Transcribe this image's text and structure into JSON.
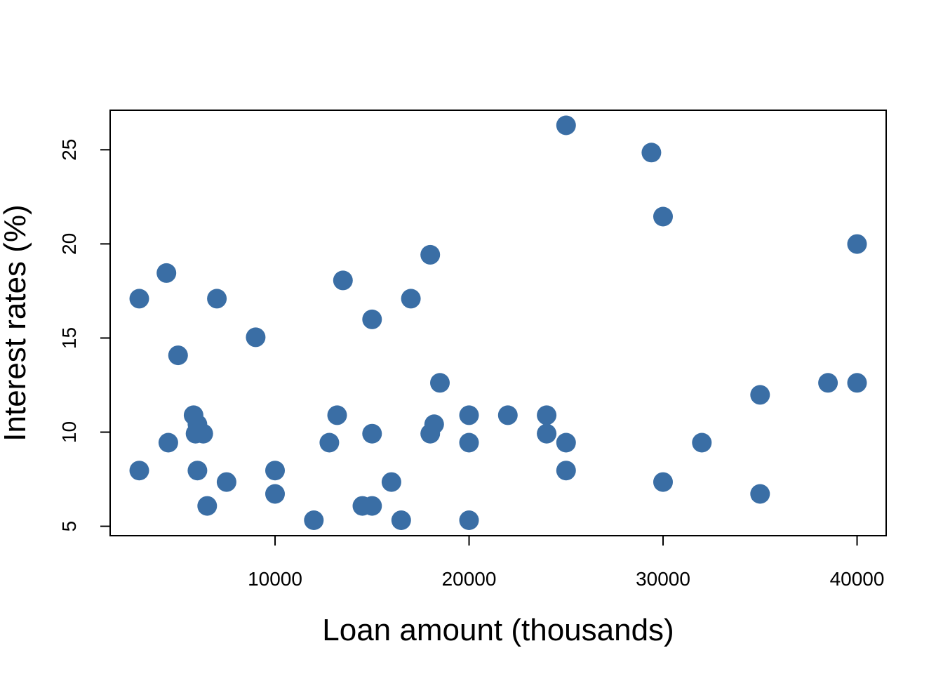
{
  "chart_data": {
    "type": "scatter",
    "title": "",
    "xlabel": "Loan amount (thousands)",
    "ylabel": "Interest rates (%)",
    "xlim": [
      1500,
      41500
    ],
    "ylim": [
      4.5,
      27.1
    ],
    "xticks": [
      10000,
      20000,
      30000,
      40000
    ],
    "yticks": [
      5,
      10,
      15,
      20,
      25
    ],
    "grid": false,
    "legend": "none",
    "point_color": "#3a6ea5",
    "points": [
      {
        "x": 3000,
        "y": 17.09
      },
      {
        "x": 3000,
        "y": 7.96
      },
      {
        "x": 4400,
        "y": 18.45
      },
      {
        "x": 4500,
        "y": 9.44
      },
      {
        "x": 5000,
        "y": 14.08
      },
      {
        "x": 5800,
        "y": 10.9
      },
      {
        "x": 6000,
        "y": 10.42
      },
      {
        "x": 5900,
        "y": 9.92
      },
      {
        "x": 6300,
        "y": 9.92
      },
      {
        "x": 6000,
        "y": 7.96
      },
      {
        "x": 6500,
        "y": 6.08
      },
      {
        "x": 7000,
        "y": 17.09
      },
      {
        "x": 7500,
        "y": 7.35
      },
      {
        "x": 9000,
        "y": 15.04
      },
      {
        "x": 10000,
        "y": 7.96
      },
      {
        "x": 10000,
        "y": 6.72
      },
      {
        "x": 12000,
        "y": 5.32
      },
      {
        "x": 12800,
        "y": 9.44
      },
      {
        "x": 13200,
        "y": 10.9
      },
      {
        "x": 13500,
        "y": 18.06
      },
      {
        "x": 14500,
        "y": 6.08
      },
      {
        "x": 15000,
        "y": 6.08
      },
      {
        "x": 15000,
        "y": 9.92
      },
      {
        "x": 15000,
        "y": 15.99
      },
      {
        "x": 16000,
        "y": 7.35
      },
      {
        "x": 16500,
        "y": 5.32
      },
      {
        "x": 17000,
        "y": 17.09
      },
      {
        "x": 18000,
        "y": 19.42
      },
      {
        "x": 18000,
        "y": 9.92
      },
      {
        "x": 18200,
        "y": 10.42
      },
      {
        "x": 18500,
        "y": 12.62
      },
      {
        "x": 20000,
        "y": 10.9
      },
      {
        "x": 20000,
        "y": 9.44
      },
      {
        "x": 20000,
        "y": 5.32
      },
      {
        "x": 22000,
        "y": 10.9
      },
      {
        "x": 24000,
        "y": 10.9
      },
      {
        "x": 24000,
        "y": 9.92
      },
      {
        "x": 25000,
        "y": 26.3
      },
      {
        "x": 25000,
        "y": 9.44
      },
      {
        "x": 25000,
        "y": 7.96
      },
      {
        "x": 29400,
        "y": 24.85
      },
      {
        "x": 30000,
        "y": 21.45
      },
      {
        "x": 30000,
        "y": 7.35
      },
      {
        "x": 32000,
        "y": 9.44
      },
      {
        "x": 35000,
        "y": 11.98
      },
      {
        "x": 35000,
        "y": 6.72
      },
      {
        "x": 38500,
        "y": 12.62
      },
      {
        "x": 40000,
        "y": 19.99
      },
      {
        "x": 40000,
        "y": 12.62
      }
    ]
  }
}
